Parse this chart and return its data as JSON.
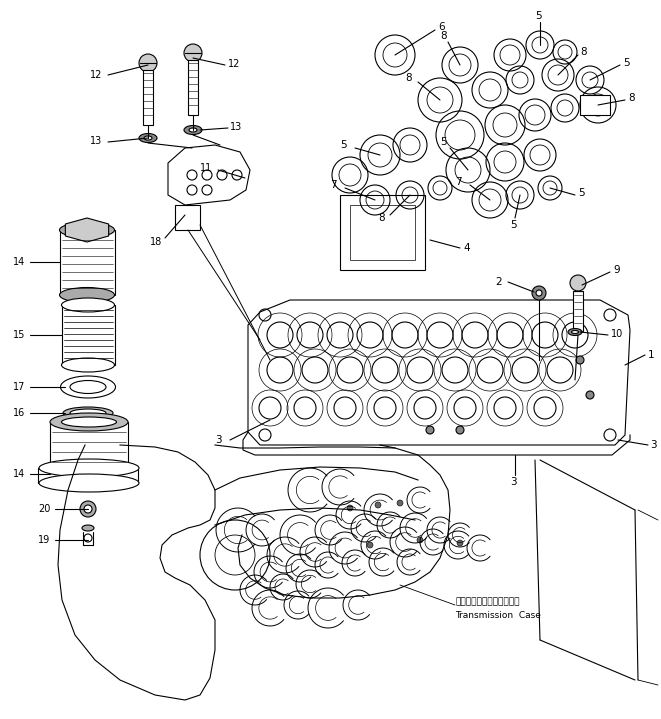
{
  "background_color": "#ffffff",
  "line_color": "#000000",
  "fig_width": 6.61,
  "fig_height": 7.19,
  "dpi": 100,
  "transmission_case_label_jp": "トランスミッションケース",
  "transmission_case_label_en": "Transmission  Case"
}
